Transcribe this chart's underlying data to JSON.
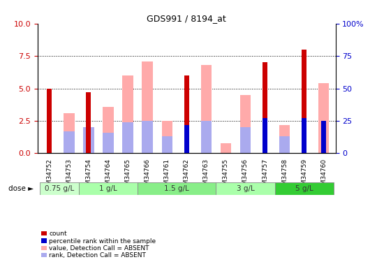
{
  "title": "GDS991 / 8194_at",
  "samples": [
    "GSM34752",
    "GSM34753",
    "GSM34754",
    "GSM34764",
    "GSM34765",
    "GSM34766",
    "GSM34761",
    "GSM34762",
    "GSM34763",
    "GSM34755",
    "GSM34756",
    "GSM34757",
    "GSM34758",
    "GSM34759",
    "GSM34760"
  ],
  "red_bars": [
    5.0,
    0.0,
    4.7,
    0.0,
    0.0,
    0.0,
    0.0,
    6.0,
    0.0,
    0.0,
    0.0,
    7.0,
    0.0,
    8.0,
    0.0
  ],
  "blue_bars": [
    0.0,
    0.0,
    0.0,
    0.0,
    0.0,
    0.0,
    0.0,
    2.2,
    0.0,
    0.0,
    0.0,
    2.7,
    0.0,
    2.7,
    2.5
  ],
  "pink_bars": [
    0.0,
    3.1,
    0.0,
    3.6,
    6.0,
    7.1,
    2.5,
    0.0,
    6.8,
    0.8,
    4.5,
    0.0,
    2.2,
    0.0,
    5.4
  ],
  "lightblue_bars": [
    0.0,
    1.7,
    2.0,
    1.6,
    2.4,
    2.5,
    1.3,
    0.0,
    2.5,
    0.0,
    2.0,
    0.0,
    1.3,
    0.0,
    0.0
  ],
  "groups": [
    {
      "label": "0.75 g/L",
      "start": 0,
      "end": 2,
      "color": "#ccffcc"
    },
    {
      "label": "1 g/L",
      "start": 2,
      "end": 5,
      "color": "#aaffaa"
    },
    {
      "label": "1.5 g/L",
      "start": 5,
      "end": 9,
      "color": "#88ee88"
    },
    {
      "label": "3 g/L",
      "start": 9,
      "end": 12,
      "color": "#aaffaa"
    },
    {
      "label": "5 g/L",
      "start": 12,
      "end": 15,
      "color": "#33cc33"
    }
  ],
  "ylim_left": [
    0,
    10
  ],
  "ylim_right": [
    0,
    100
  ],
  "yticks_left": [
    0,
    2.5,
    5.0,
    7.5,
    10
  ],
  "yticks_right": [
    0,
    25,
    50,
    75,
    100
  ],
  "red_color": "#cc0000",
  "blue_color": "#0000cc",
  "pink_color": "#ffaaaa",
  "lightblue_color": "#aaaaee",
  "left_tick_color": "#cc0000",
  "right_tick_color": "#0000cc",
  "background_color": "#ffffff",
  "grid_color": "#000000"
}
